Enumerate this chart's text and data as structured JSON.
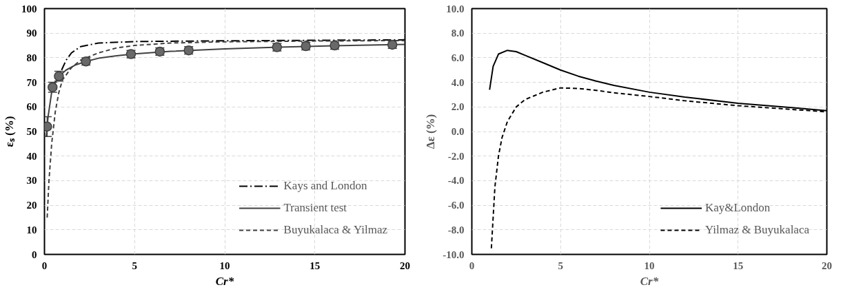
{
  "chart_data": [
    {
      "type": "line",
      "xlabel": "Cr*",
      "ylabel": "εₛ (%)",
      "xlim": [
        0,
        20
      ],
      "ylim": [
        0,
        100
      ],
      "xticks": [
        0,
        5,
        10,
        15,
        20
      ],
      "yticks": [
        0,
        10,
        20,
        30,
        40,
        50,
        60,
        70,
        80,
        90,
        100
      ],
      "grid": true,
      "legend": "bottom right",
      "series": [
        {
          "name": "Kays and London",
          "color": "#000000",
          "line_style": "dashdot",
          "x": [
            0.95,
            1.2,
            1.5,
            2,
            3,
            5,
            10,
            15,
            20
          ],
          "values": [
            75,
            79,
            82,
            84.5,
            86,
            86.6,
            86.9,
            87.1,
            87.3
          ]
        },
        {
          "name": "Transient test",
          "color": "#404040",
          "line_style": "solid",
          "x": [
            0.1,
            0.2,
            0.4,
            0.6,
            0.8,
            1.2,
            1.7,
            2.3,
            3,
            4,
            5,
            7,
            10,
            13,
            16,
            20
          ],
          "values": [
            48,
            56,
            66,
            70,
            72.5,
            75,
            77,
            78.5,
            79.8,
            80.8,
            81.6,
            82.6,
            83.6,
            84.3,
            84.9,
            85.4
          ]
        },
        {
          "name": "Buyukalaca & Yilmaz",
          "color": "#404040",
          "line_style": "dashed",
          "x": [
            0.15,
            0.25,
            0.4,
            0.6,
            0.8,
            1,
            1.5,
            2,
            3,
            4,
            5,
            7,
            10,
            15,
            20
          ],
          "values": [
            15,
            30,
            45,
            58,
            66,
            71,
            76,
            79,
            82,
            84,
            85,
            86,
            86.5,
            86.8,
            87
          ]
        },
        {
          "type": "scatter",
          "color": "#696969",
          "marker": "circle",
          "x": [
            0.15,
            0.45,
            0.8,
            2.3,
            4.8,
            6.4,
            8,
            12.9,
            14.5,
            16.1,
            19.3
          ],
          "values": [
            52,
            68,
            72.5,
            78.5,
            81.5,
            82.5,
            83,
            84.3,
            84.7,
            85,
            85.3
          ],
          "errors": [
            4,
            2,
            2,
            1.5,
            1.5,
            1.5,
            1.5,
            1.5,
            1.5,
            1.5,
            1.5
          ]
        }
      ]
    },
    {
      "type": "line",
      "xlabel": "Cr*",
      "ylabel": "Δε (%)",
      "xlim": [
        0,
        20
      ],
      "ylim": [
        -10,
        10
      ],
      "xticks": [
        0,
        5,
        10,
        15,
        20
      ],
      "yticks": [
        {
          "value": -10,
          "label": "-10.0"
        },
        {
          "value": -8,
          "label": "-8.0"
        },
        {
          "value": -6,
          "label": "-6.0"
        },
        {
          "value": -4,
          "label": "-4.0"
        },
        {
          "value": -2,
          "label": "-2.0"
        },
        {
          "value": 0,
          "label": "0.0"
        },
        {
          "value": 2,
          "label": "2.0"
        },
        {
          "value": 4,
          "label": "4.0"
        },
        {
          "value": 6,
          "label": "6.0"
        },
        {
          "value": 8,
          "label": "8.0"
        },
        {
          "value": 10,
          "label": "10.0"
        }
      ],
      "grid": true,
      "legend": "bottom right",
      "series": [
        {
          "name": "Kay&London",
          "color": "#000000",
          "line_style": "solid",
          "x": [
            1,
            1.2,
            1.5,
            2,
            2.5,
            3,
            4,
            5,
            6,
            7,
            8,
            10,
            12,
            15,
            18,
            20
          ],
          "values": [
            3.4,
            5.3,
            6.3,
            6.6,
            6.5,
            6.2,
            5.6,
            5.0,
            4.5,
            4.1,
            3.75,
            3.2,
            2.8,
            2.3,
            1.95,
            1.7
          ]
        },
        {
          "name": "Yilmaz & Buyukalaca",
          "color": "#000000",
          "line_style": "dashed",
          "x": [
            1.1,
            1.2,
            1.3,
            1.5,
            1.7,
            2,
            2.5,
            3,
            3.5,
            4,
            5,
            6,
            7,
            8,
            10,
            12,
            15,
            18,
            20
          ],
          "values": [
            -9.5,
            -7,
            -4.5,
            -2,
            -0.5,
            0.8,
            2,
            2.6,
            2.9,
            3.2,
            3.55,
            3.5,
            3.35,
            3.15,
            2.85,
            2.5,
            2.1,
            1.8,
            1.6
          ]
        }
      ]
    }
  ]
}
